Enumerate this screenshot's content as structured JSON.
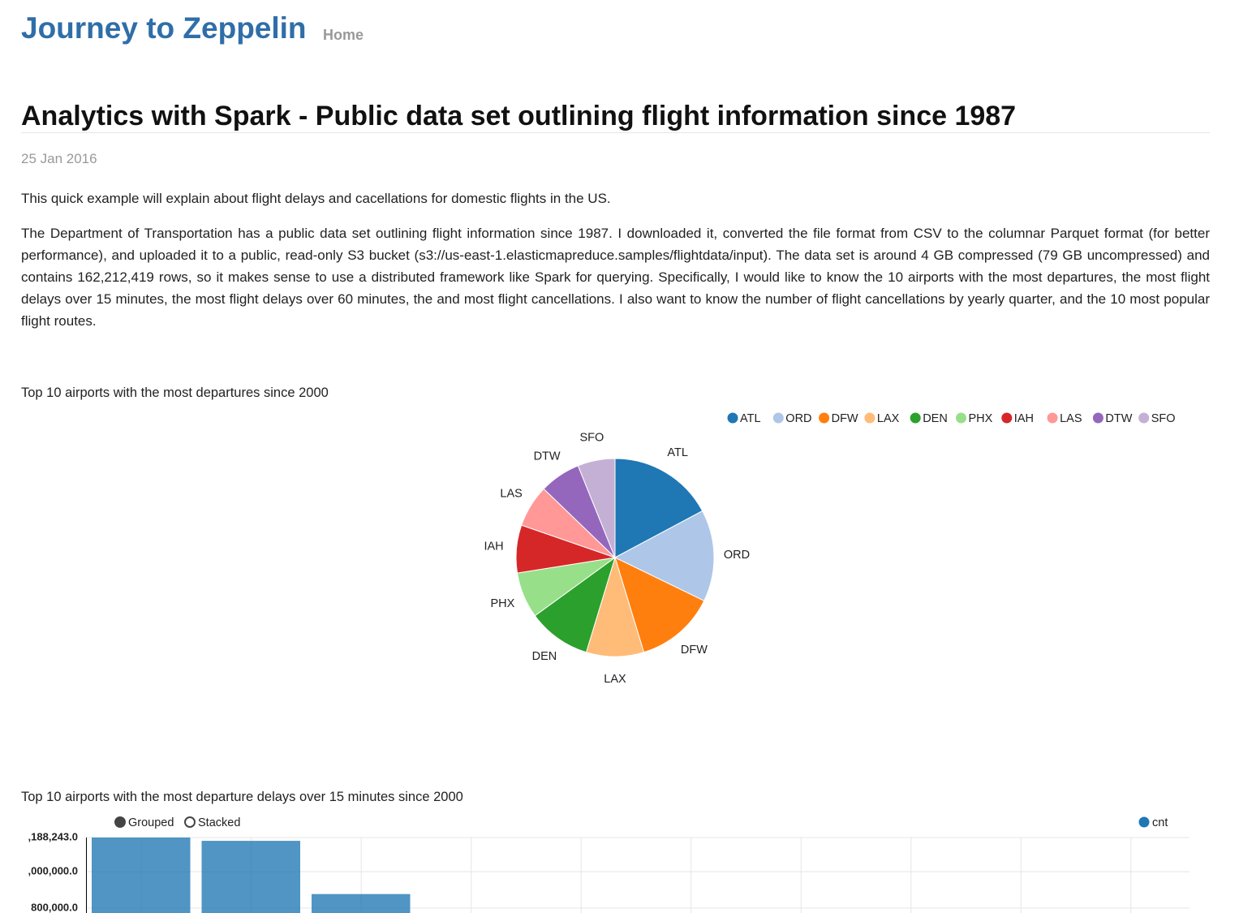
{
  "header": {
    "brand": "Journey to Zeppelin",
    "nav": [
      "Home"
    ]
  },
  "post": {
    "title": "Analytics with Spark - Public data set outlining flight information since 1987",
    "date": "25 Jan 2016",
    "paragraphs": [
      "This quick example will explain about flight delays and cacellations for domestic flights in the US.",
      "The Department of Transportation has a public data set outlining flight information since 1987. I downloaded it, converted the file format from CSV to the columnar Parquet format (for better performance), and uploaded it to a public, read-only S3 bucket (s3://us-east-1.elasticmapreduce.samples/flightdata/input). The data set is around 4 GB compressed (79 GB uncompressed) and contains 162,212,419 rows, so it makes sense to use a distributed framework like Spark for querying. Specifically, I would like to know the 10 airports with the most departures, the most flight delays over 15 minutes, the most flight delays over 60 minutes, the and most flight cancellations. I also want to know the number of flight cancellations by yearly quarter, and the 10 most popular flight routes."
    ]
  },
  "chart_data": [
    {
      "type": "pie",
      "title": "Top 10 airports with the most departures since 2000",
      "categories": [
        "ATL",
        "ORD",
        "DFW",
        "LAX",
        "DEN",
        "PHX",
        "IAH",
        "LAS",
        "DTW",
        "SFO"
      ],
      "values": [
        17.2,
        15.0,
        13.1,
        9.4,
        10.3,
        7.5,
        7.8,
        6.9,
        6.7,
        6.1
      ],
      "colors": [
        "#1f77b4",
        "#aec7e8",
        "#ff7f0e",
        "#ffbb78",
        "#2ca02c",
        "#98df8a",
        "#d62728",
        "#ff9896",
        "#9467bd",
        "#c5b0d5"
      ],
      "legend": "top-right"
    },
    {
      "type": "bar",
      "title": "Top 10 airports with the most departure delays over 15 minutes since 2000",
      "controls": [
        "Grouped",
        "Stacked"
      ],
      "categories": [
        null,
        null,
        null,
        null,
        null,
        null,
        null,
        null,
        null,
        null
      ],
      "series": [
        {
          "name": "cnt",
          "color": "#1f77b4",
          "values": [
            1188243,
            1170000,
            877000,
            null,
            null,
            null,
            null,
            null,
            null,
            null
          ]
        }
      ],
      "ylim": [
        772700,
        1188243
      ],
      "yticks": [
        {
          "value": 800000,
          "label": "800,000.0"
        },
        {
          "value": 1000000,
          "label": ",000,000.0"
        },
        {
          "value": 1188243,
          "label": ",188,243.0"
        }
      ],
      "grid": true,
      "legend": "top-right"
    }
  ]
}
